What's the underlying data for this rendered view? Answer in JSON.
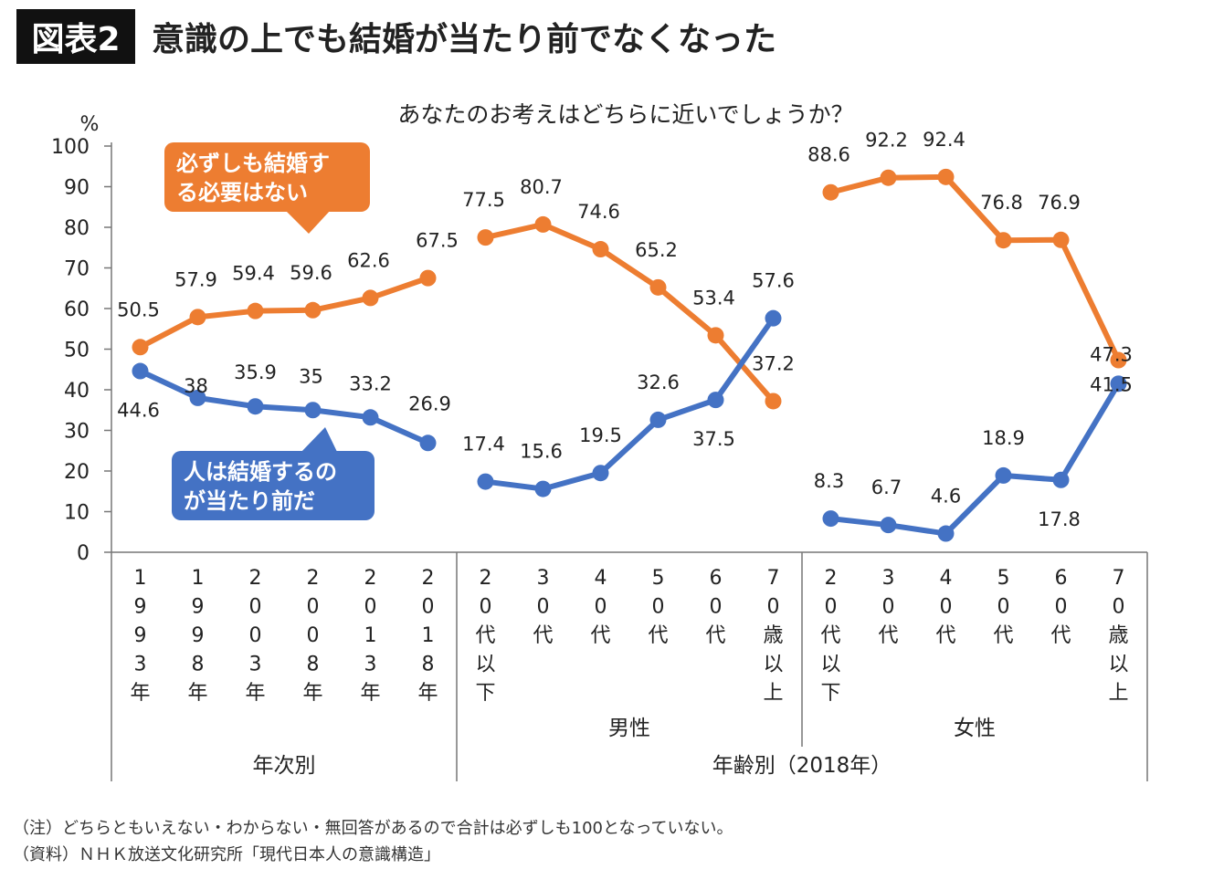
{
  "header": {
    "figure_label": "図表2",
    "headline": "意識の上でも結婚が当たり前でなくなった"
  },
  "chart_data": {
    "type": "line",
    "title": "あなたのお考えはどちらに近いでしょうか？",
    "ylabel": "%",
    "ylim": [
      0,
      100
    ],
    "yticks": [
      "0",
      "10",
      "20",
      "30",
      "40",
      "50",
      "60",
      "70",
      "80",
      "90",
      "100"
    ],
    "grid": false,
    "colors": {
      "orange": "#ed7d31",
      "blue": "#4472c4"
    },
    "categories": [
      "1993年",
      "1998年",
      "2003年",
      "2008年",
      "2013年",
      "2018年",
      "20代以下",
      "30代",
      "40代",
      "50代",
      "60代",
      "70歳以上",
      "20代以下",
      "30代",
      "40代",
      "50代",
      "60代",
      "70歳以上"
    ],
    "groups": [
      {
        "label": "年次別",
        "sublabel": "",
        "count": 6
      },
      {
        "label": "年齢別（2018年）",
        "sublabel": "男性",
        "count": 6
      },
      {
        "label": "",
        "sublabel": "女性",
        "count": 6
      }
    ],
    "series": [
      {
        "name": "必ずしも結婚する必要はない",
        "color": "#ed7d31",
        "segments": [
          {
            "start": 0,
            "values": [
              50.5,
              57.9,
              59.4,
              59.6,
              62.6,
              67.5
            ],
            "labels": [
              "50.5",
              "57.9",
              "59.4",
              "59.6",
              "62.6",
              "67.5"
            ]
          },
          {
            "start": 6,
            "values": [
              77.5,
              80.7,
              74.6,
              65.2,
              53.4,
              37.2
            ],
            "labels": [
              "77.5",
              "80.7",
              "74.6",
              "65.2",
              "53.4",
              "37.2"
            ]
          },
          {
            "start": 12,
            "values": [
              88.6,
              92.2,
              92.4,
              76.8,
              76.9,
              47.3
            ],
            "labels": [
              "88.6",
              "92.2",
              "92.4",
              "76.8",
              "76.9",
              "47.3"
            ]
          }
        ]
      },
      {
        "name": "人は結婚するのが当たり前だ",
        "color": "#4472c4",
        "segments": [
          {
            "start": 0,
            "values": [
              44.6,
              38,
              35.9,
              35,
              33.2,
              26.9
            ],
            "labels": [
              "44.6",
              "38",
              "35.9",
              "35",
              "33.2",
              "26.9"
            ]
          },
          {
            "start": 6,
            "values": [
              17.4,
              15.6,
              19.5,
              32.6,
              37.5,
              57.6
            ],
            "labels": [
              "17.4",
              "15.6",
              "19.5",
              "32.6",
              "37.5",
              "57.6"
            ]
          },
          {
            "start": 12,
            "values": [
              8.3,
              6.7,
              4.6,
              18.9,
              17.8,
              41.5
            ],
            "labels": [
              "8.3",
              "6.7",
              "4.6",
              "18.9",
              "17.8",
              "41.5"
            ]
          }
        ]
      }
    ],
    "callouts": [
      {
        "series": 0,
        "line1": "必ずしも結婚す",
        "line2": "る必要はない"
      },
      {
        "series": 1,
        "line1": "人は結婚するの",
        "line2": "が当たり前だ"
      }
    ]
  },
  "notes": {
    "note1": "（注）どちらともいえない・わからない・無回答があるので合計は必ずしも100となっていない。",
    "note2": "（資料）ＮＨＫ放送文化研究所「現代日本人の意識構造」"
  }
}
